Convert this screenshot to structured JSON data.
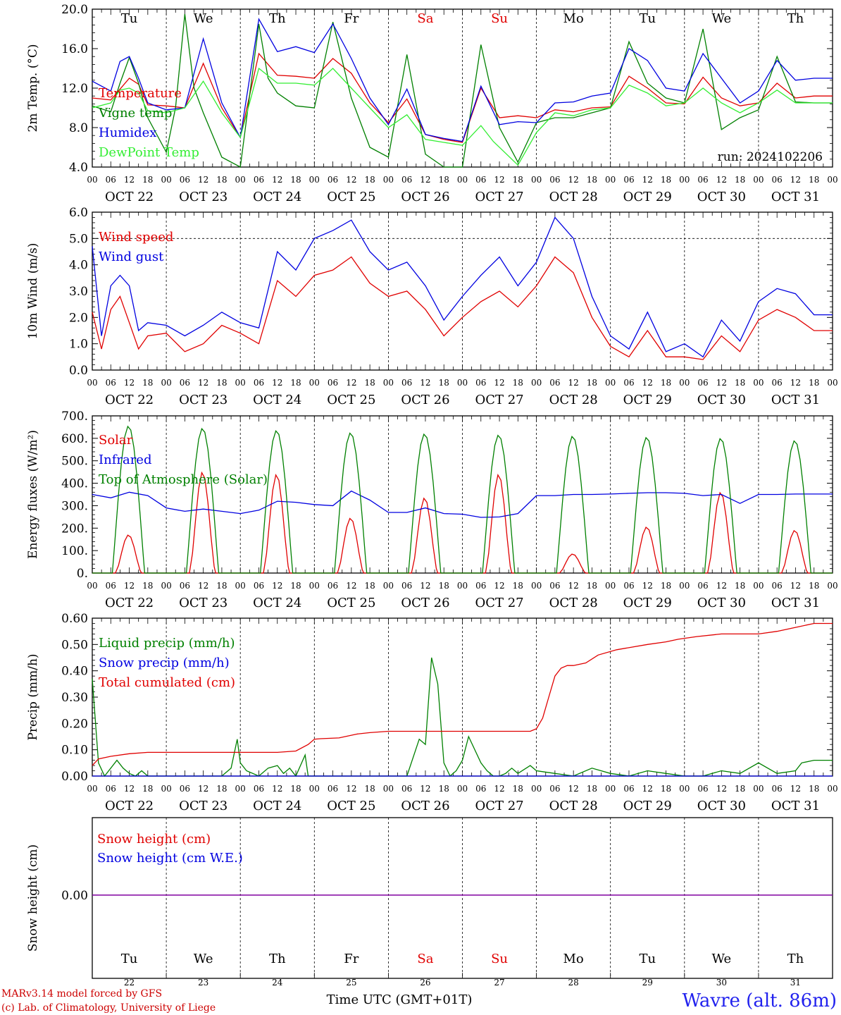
{
  "days": {
    "weekdays": [
      "Tu",
      "We",
      "Th",
      "Fr",
      "Sa",
      "Su",
      "Mo",
      "Tu",
      "We",
      "Th"
    ],
    "weekend_flags": [
      false,
      false,
      false,
      false,
      true,
      true,
      false,
      false,
      false,
      false
    ],
    "dates": [
      "OCT 22",
      "OCT 23",
      "OCT 24",
      "OCT 25",
      "OCT 26",
      "OCT 27",
      "OCT 28",
      "OCT 29",
      "OCT 30",
      "OCT 31"
    ],
    "day_numbers": [
      "22",
      "23",
      "24",
      "25",
      "26",
      "27",
      "28",
      "29",
      "30",
      "31"
    ],
    "hour_ticks": [
      "00",
      "06",
      "12",
      "18"
    ],
    "end_tick": "00"
  },
  "colors": {
    "red": "#e00000",
    "green": "#008000",
    "blue": "#0000e0",
    "lightgreen": "#33ee33",
    "purple": "#8000a0",
    "weekend": "#e00000"
  },
  "run_label": "run: 2024102206",
  "footer": {
    "model_line": "MARv3.14 model forced by GFS",
    "lab_line": "(c) Lab. of Climatology, University of Liege",
    "axis_title": "Time UTC (GMT+01T)",
    "station": "Wavre (alt. 86m)"
  },
  "chart_data": [
    {
      "type": "line",
      "ylabel": "2m Temp. (°C)",
      "ylim": [
        4,
        20
      ],
      "ytick_labels": [
        "4.0",
        "8.0",
        "12.0",
        "16.0",
        "20.0"
      ],
      "ytick_values": [
        4,
        8,
        12,
        16,
        20
      ],
      "x_unit": "hours since Oct 22 00 UTC",
      "series": [
        {
          "name": "Temperature",
          "color": "red",
          "x": [
            0,
            6,
            9,
            12,
            15,
            18,
            24,
            30,
            36,
            42,
            48,
            54,
            60,
            66,
            72,
            78,
            84,
            90,
            96,
            102,
            108,
            114,
            120,
            126,
            132,
            138,
            144,
            150,
            156,
            162,
            168,
            174,
            180,
            186,
            192,
            198,
            204,
            210,
            216,
            222,
            228,
            234
          ],
          "values": [
            11.0,
            10.8,
            11.9,
            13.0,
            12.4,
            10.3,
            10.2,
            10.0,
            14.5,
            10.0,
            7.0,
            15.5,
            13.3,
            13.2,
            13.0,
            15.0,
            13.5,
            10.5,
            8.5,
            10.9,
            7.3,
            6.8,
            6.5,
            12.0,
            9.0,
            9.2,
            9.0,
            9.8,
            9.6,
            10.0,
            10.1,
            13.2,
            12.0,
            10.5,
            10.4,
            13.1,
            11.0,
            10.2,
            10.5,
            12.5,
            11.0,
            11.2
          ]
        },
        {
          "name": "Vigne temp",
          "color": "green",
          "x": [
            0,
            6,
            9,
            12,
            15,
            18,
            24,
            27,
            30,
            33,
            36,
            42,
            48,
            54,
            57,
            60,
            66,
            72,
            78,
            84,
            90,
            96,
            102,
            108,
            114,
            120,
            126,
            132,
            138,
            144,
            150,
            156,
            162,
            168,
            174,
            180,
            186,
            192,
            198,
            204,
            210,
            216,
            222,
            228,
            234
          ],
          "values": [
            10.2,
            9.6,
            12.5,
            15.1,
            12.5,
            9.0,
            5.5,
            10.0,
            19.5,
            12.0,
            9.5,
            5.0,
            4.0,
            18.5,
            13.0,
            11.5,
            10.2,
            10.0,
            18.7,
            11.0,
            6.0,
            5.0,
            15.4,
            5.3,
            3.6,
            3.0,
            16.4,
            8.0,
            4.5,
            8.5,
            9.0,
            9.0,
            9.5,
            10.0,
            16.7,
            12.5,
            11.0,
            10.5,
            18.0,
            7.8,
            9.0,
            9.8,
            15.2,
            10.6,
            10.5
          ]
        },
        {
          "name": "Humidex",
          "color": "blue",
          "x": [
            0,
            6,
            9,
            12,
            15,
            18,
            24,
            30,
            36,
            42,
            48,
            54,
            60,
            66,
            72,
            78,
            84,
            90,
            96,
            102,
            108,
            114,
            120,
            126,
            132,
            138,
            144,
            150,
            156,
            162,
            168,
            174,
            180,
            186,
            192,
            198,
            204,
            210,
            216,
            222,
            228,
            234
          ],
          "values": [
            12.7,
            11.7,
            14.7,
            15.2,
            13.0,
            10.5,
            9.8,
            10.0,
            17.0,
            10.5,
            7.0,
            19.0,
            15.7,
            16.2,
            15.6,
            18.5,
            15.0,
            11.0,
            8.3,
            11.9,
            7.3,
            6.9,
            6.6,
            12.2,
            8.3,
            8.6,
            8.5,
            10.5,
            10.6,
            11.2,
            11.5,
            16.0,
            14.8,
            12.0,
            11.7,
            15.5,
            13.0,
            10.5,
            11.7,
            14.8,
            12.8,
            13.0
          ]
        },
        {
          "name": "DewPoint Temp",
          "color": "lightgreen",
          "x": [
            0,
            6,
            9,
            12,
            15,
            18,
            24,
            30,
            36,
            42,
            48,
            54,
            60,
            66,
            72,
            78,
            84,
            90,
            96,
            102,
            108,
            114,
            120,
            126,
            130,
            138,
            144,
            150,
            156,
            162,
            168,
            174,
            180,
            186,
            192,
            198,
            204,
            210,
            216,
            222,
            228,
            234
          ],
          "values": [
            10.0,
            10.5,
            11.8,
            12.0,
            11.5,
            9.7,
            9.5,
            10.0,
            12.7,
            9.5,
            7.0,
            14.0,
            12.5,
            12.5,
            12.3,
            14.0,
            12.0,
            10.0,
            8.0,
            9.3,
            6.8,
            6.5,
            6.2,
            8.2,
            6.6,
            4.2,
            7.5,
            9.5,
            9.2,
            9.8,
            10.0,
            12.3,
            11.5,
            10.2,
            10.5,
            12.0,
            10.5,
            9.5,
            10.5,
            11.8,
            10.5,
            10.5
          ]
        }
      ]
    },
    {
      "type": "line",
      "ylabel": "10m Wind (m/s)",
      "ylim": [
        0,
        6
      ],
      "ytick_labels": [
        "0.0",
        "1.0",
        "2.0",
        "3.0",
        "4.0",
        "5.0",
        "6.0"
      ],
      "ytick_values": [
        0,
        1,
        2,
        3,
        4,
        5,
        6
      ],
      "reference_line": 5.0,
      "series": [
        {
          "name": "Wind speed",
          "color": "red",
          "x": [
            0,
            3,
            6,
            9,
            12,
            15,
            18,
            24,
            30,
            36,
            42,
            48,
            54,
            60,
            66,
            72,
            78,
            84,
            90,
            96,
            102,
            108,
            114,
            120,
            126,
            132,
            138,
            144,
            150,
            156,
            162,
            168,
            174,
            180,
            186,
            192,
            198,
            204,
            210,
            216,
            222,
            228,
            234
          ],
          "values": [
            2.2,
            0.8,
            2.3,
            2.8,
            1.8,
            0.8,
            1.3,
            1.4,
            0.7,
            1.0,
            1.7,
            1.4,
            1.0,
            3.4,
            2.8,
            3.6,
            3.8,
            4.3,
            3.3,
            2.8,
            3.0,
            2.3,
            1.3,
            2.0,
            2.6,
            3.0,
            2.4,
            3.2,
            4.3,
            3.7,
            2.0,
            0.9,
            0.5,
            1.5,
            0.5,
            0.5,
            0.4,
            1.3,
            0.7,
            1.9,
            2.3,
            2.0,
            1.5
          ]
        },
        {
          "name": "Wind gust",
          "color": "blue",
          "x": [
            0,
            3,
            6,
            9,
            12,
            15,
            18,
            24,
            30,
            36,
            42,
            48,
            54,
            60,
            66,
            72,
            78,
            84,
            90,
            96,
            102,
            108,
            114,
            120,
            126,
            132,
            138,
            144,
            150,
            156,
            162,
            168,
            174,
            180,
            186,
            192,
            198,
            204,
            210,
            216,
            222,
            228,
            234
          ],
          "values": [
            4.7,
            1.3,
            3.2,
            3.6,
            3.2,
            1.5,
            1.8,
            1.7,
            1.3,
            1.7,
            2.2,
            1.8,
            1.6,
            4.5,
            3.8,
            5.0,
            5.3,
            5.7,
            4.5,
            3.8,
            4.1,
            3.2,
            1.9,
            2.8,
            3.6,
            4.3,
            3.2,
            4.1,
            5.8,
            5.0,
            2.8,
            1.3,
            0.8,
            2.2,
            0.7,
            1.0,
            0.5,
            1.9,
            1.1,
            2.6,
            3.1,
            2.9,
            2.1
          ]
        }
      ]
    },
    {
      "type": "line",
      "ylabel": "Energy fluxes (W/m²)",
      "ylim": [
        0,
        700
      ],
      "ytick_labels": [
        "0.",
        "100.",
        "200.",
        "300.",
        "400.",
        "500.",
        "600.",
        "700."
      ],
      "ytick_values": [
        0,
        100,
        200,
        300,
        400,
        500,
        600,
        700
      ],
      "series": [
        {
          "name": "Solar",
          "color": "red",
          "peaks": [
            170,
            450,
            440,
            245,
            335,
            440,
            85,
            205,
            360,
            190
          ]
        },
        {
          "name": "Infrared",
          "color": "blue",
          "x": [
            0,
            6,
            12,
            18,
            24,
            30,
            36,
            42,
            48,
            54,
            60,
            66,
            72,
            78,
            84,
            90,
            96,
            102,
            108,
            114,
            120,
            126,
            132,
            138,
            144,
            150,
            156,
            162,
            168,
            174,
            180,
            186,
            192,
            198,
            204,
            210,
            216,
            222,
            228,
            234
          ],
          "values": [
            350,
            335,
            360,
            345,
            290,
            275,
            285,
            275,
            265,
            280,
            320,
            315,
            305,
            300,
            365,
            325,
            270,
            270,
            290,
            265,
            262,
            248,
            250,
            265,
            345,
            345,
            350,
            350,
            352,
            355,
            358,
            358,
            355,
            345,
            350,
            310,
            350,
            350,
            352,
            352
          ]
        },
        {
          "name": "Top of Atmosphere (Solar)",
          "color": "green",
          "peaks": [
            655,
            645,
            635,
            625,
            620,
            615,
            610,
            605,
            600,
            590
          ]
        }
      ]
    },
    {
      "type": "line",
      "ylabel": "Precip (mm/h)",
      "ylim": [
        0,
        0.6
      ],
      "ytick_labels": [
        "0.00",
        "0.10",
        "0.20",
        "0.30",
        "0.40",
        "0.50",
        "0.60"
      ],
      "ytick_values": [
        0,
        0.1,
        0.2,
        0.3,
        0.4,
        0.5,
        0.6
      ],
      "series": [
        {
          "name": "Liquid precip (mm/h)",
          "color": "green",
          "x": [
            0,
            2,
            4,
            8,
            10,
            12,
            14,
            16,
            18,
            20,
            24,
            40,
            42,
            45,
            47,
            48,
            50,
            54,
            57,
            60,
            62,
            64,
            66,
            69,
            70,
            71,
            72,
            96,
            102,
            106,
            108,
            110,
            112,
            114,
            116,
            118,
            120,
            122,
            126,
            128,
            130,
            132,
            134,
            136,
            138,
            142,
            144,
            150,
            156,
            162,
            168,
            174,
            180,
            186,
            192,
            198,
            204,
            210,
            216,
            222,
            228,
            230,
            234
          ],
          "values": [
            0.37,
            0.05,
            0,
            0.06,
            0.03,
            0.01,
            0,
            0.02,
            0,
            0,
            0,
            0,
            0,
            0.03,
            0.14,
            0.05,
            0.02,
            0,
            0.03,
            0.04,
            0.01,
            0.03,
            0,
            0.08,
            0,
            0,
            0,
            0,
            0,
            0.14,
            0.12,
            0.45,
            0.35,
            0.05,
            0,
            0.02,
            0.06,
            0.15,
            0.05,
            0.02,
            0,
            0,
            0.01,
            0.03,
            0.01,
            0.04,
            0.02,
            0.01,
            0,
            0.03,
            0.01,
            0,
            0.02,
            0.01,
            0,
            0,
            0.02,
            0.01,
            0.05,
            0.01,
            0.02,
            0.05,
            0.06
          ]
        },
        {
          "name": "Snow precip (mm/h)",
          "color": "blue",
          "x": [
            0,
            234
          ],
          "values": [
            0,
            0
          ]
        },
        {
          "name": "Total cumulated (cm)",
          "color": "red",
          "x": [
            0,
            2,
            6,
            12,
            18,
            24,
            36,
            48,
            60,
            66,
            70,
            72,
            74,
            80,
            86,
            90,
            96,
            102,
            108,
            114,
            120,
            126,
            132,
            142,
            144,
            146,
            148,
            150,
            152,
            154,
            156,
            160,
            164,
            170,
            180,
            186,
            190,
            196,
            204,
            210,
            216,
            222,
            228,
            234
          ],
          "values": [
            0.04,
            0.065,
            0.075,
            0.085,
            0.09,
            0.09,
            0.09,
            0.09,
            0.09,
            0.095,
            0.12,
            0.14,
            0.142,
            0.145,
            0.16,
            0.165,
            0.17,
            0.17,
            0.17,
            0.17,
            0.17,
            0.17,
            0.17,
            0.17,
            0.18,
            0.22,
            0.3,
            0.38,
            0.41,
            0.42,
            0.42,
            0.43,
            0.46,
            0.48,
            0.5,
            0.51,
            0.52,
            0.53,
            0.54,
            0.54,
            0.54,
            0.55,
            0.565,
            0.58
          ]
        }
      ]
    },
    {
      "type": "line",
      "ylabel": "Snow height (cm)",
      "ytick_labels": [
        "0.00"
      ],
      "series": [
        {
          "name": "Snow height (cm)",
          "color": "red",
          "x": [
            0,
            234
          ],
          "values": [
            0,
            0
          ]
        },
        {
          "name": "Snow height (cm W.E.)",
          "color": "blue",
          "x": [
            0,
            234
          ],
          "values": [
            0,
            0
          ]
        }
      ]
    }
  ]
}
